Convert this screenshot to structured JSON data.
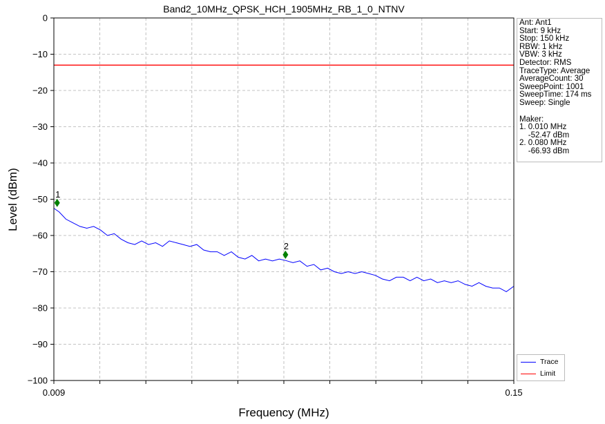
{
  "chart_data": {
    "type": "line",
    "title": "Band2_10MHz_QPSK_HCH_1905MHz_RB_1_0_NTNV",
    "xlabel": "Frequency (MHz)",
    "ylabel": "Level (dBm)",
    "xlim": [
      0.009,
      0.15
    ],
    "ylim": [
      -100,
      0
    ],
    "x_tick_labels": [
      "0.009",
      "0.15"
    ],
    "y_ticks": [
      0,
      -10,
      -20,
      -30,
      -40,
      -50,
      -60,
      -70,
      -80,
      -90,
      -100
    ],
    "y_tick_labels": [
      "0",
      "−10",
      "−20",
      "−30",
      "−40",
      "−50",
      "−60",
      "−70",
      "−80",
      "−90",
      "−100"
    ],
    "x_minor_ticks": 10,
    "grid": true,
    "series": [
      {
        "name": "Trace",
        "color": "#0000ff",
        "x": [
          0.009,
          0.0106,
          0.0127,
          0.0148,
          0.017,
          0.0191,
          0.0212,
          0.0233,
          0.0254,
          0.0275,
          0.0296,
          0.0317,
          0.0338,
          0.0359,
          0.038,
          0.0402,
          0.0423,
          0.0444,
          0.0465,
          0.0486,
          0.0507,
          0.0528,
          0.0549,
          0.057,
          0.0591,
          0.0612,
          0.0634,
          0.0655,
          0.0676,
          0.0697,
          0.0718,
          0.0739,
          0.076,
          0.0781,
          0.08,
          0.0823,
          0.0844,
          0.0866,
          0.0887,
          0.0908,
          0.0929,
          0.095,
          0.0971,
          0.0992,
          0.1013,
          0.1034,
          0.1055,
          0.1076,
          0.1097,
          0.1119,
          0.114,
          0.1161,
          0.1182,
          0.1203,
          0.1224,
          0.1245,
          0.1266,
          0.1287,
          0.1308,
          0.1329,
          0.1351,
          0.1372,
          0.1393,
          0.1414,
          0.1435,
          0.1456,
          0.1477,
          0.15
        ],
        "values": [
          -52.5,
          -53.5,
          -55.5,
          -56.5,
          -57.5,
          -58.0,
          -57.5,
          -58.5,
          -60.0,
          -59.5,
          -61.0,
          -62.0,
          -62.5,
          -61.5,
          -62.5,
          -62.0,
          -63.0,
          -61.5,
          -62.0,
          -62.5,
          -63.0,
          -62.5,
          -64.0,
          -64.5,
          -64.5,
          -65.5,
          -64.5,
          -66.0,
          -66.5,
          -65.5,
          -67.0,
          -66.5,
          -67.0,
          -66.5,
          -66.9,
          -67.5,
          -67.0,
          -68.5,
          -68.0,
          -69.5,
          -69.0,
          -70.0,
          -70.5,
          -70.0,
          -70.5,
          -70.0,
          -70.5,
          -71.0,
          -72.0,
          -72.5,
          -71.5,
          -71.5,
          -72.5,
          -71.5,
          -72.5,
          -72.0,
          -73.0,
          -72.5,
          -73.0,
          -72.5,
          -73.5,
          -74.0,
          -73.0,
          -74.0,
          -74.5,
          -74.5,
          -75.5,
          -74.0
        ]
      },
      {
        "name": "Limit",
        "color": "#ff0000",
        "x": [
          0.009,
          0.15
        ],
        "values": [
          -13,
          -13
        ]
      }
    ],
    "markers": [
      {
        "label": "1",
        "x": 0.01,
        "y": -51.0,
        "color": "#008000"
      },
      {
        "label": "2",
        "x": 0.08,
        "y": -65.3,
        "color": "#008000"
      }
    ],
    "legend_position": "bottom-right, outside plot"
  },
  "info": {
    "lines": [
      "Ant: Ant1",
      "Start: 9 kHz",
      "Stop: 150 kHz",
      "RBW: 1 kHz",
      "VBW: 3 kHz",
      "Detector: RMS",
      "TraceType: Average",
      "AverageCount: 30",
      "SweepPoint: 1001",
      "SweepTime: 174 ms",
      "Sweep: Single"
    ],
    "maker_lines": [
      "Maker:",
      "1. 0.010 MHz",
      "    -52.47 dBm",
      "2. 0.080 MHz",
      "    -66.93 dBm"
    ]
  },
  "legend": {
    "items": [
      {
        "label": "Trace",
        "color": "#0000ff"
      },
      {
        "label": "Limit",
        "color": "#ff0000"
      }
    ]
  }
}
